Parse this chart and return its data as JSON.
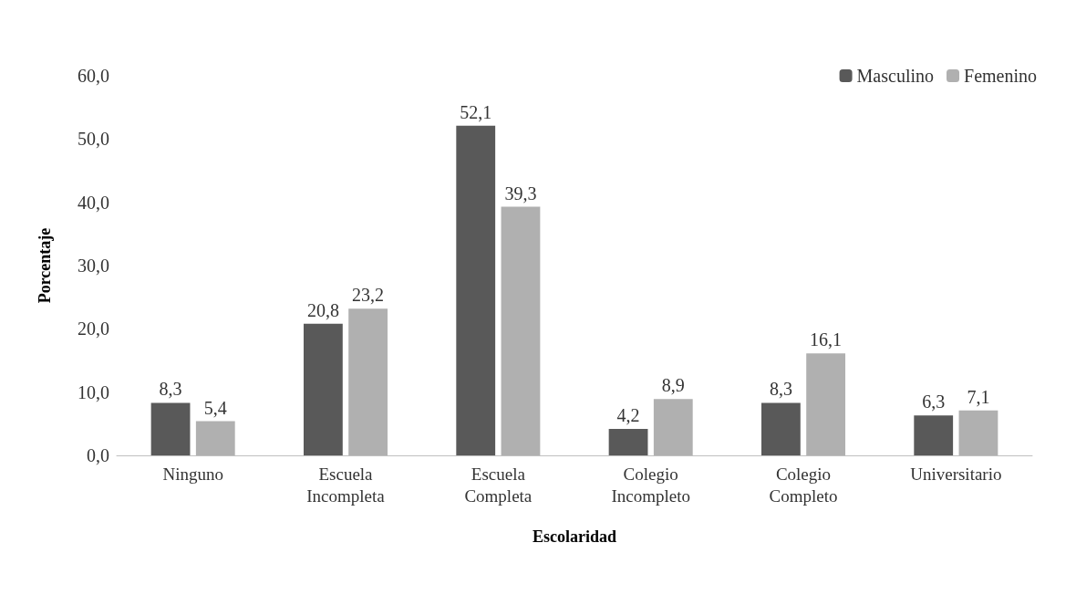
{
  "chart_data": {
    "type": "bar",
    "xlabel": "Escolaridad",
    "ylabel": "Porcentaje",
    "categories": [
      "Ninguno",
      "Escuela Incompleta",
      "Escuela Completa",
      "Colegio Incompleto",
      "Colegio Completo",
      "Universitario"
    ],
    "series": [
      {
        "name": "Masculino",
        "color": "#595959",
        "values": [
          8.3,
          20.8,
          52.1,
          4.2,
          8.3,
          6.3
        ],
        "value_labels": [
          "8,3",
          "20,8",
          "52,1",
          "4,2",
          "8,3",
          "6,3"
        ]
      },
      {
        "name": "Femenino",
        "color": "#b0b0b0",
        "values": [
          5.4,
          23.2,
          39.3,
          8.9,
          16.1,
          7.1
        ],
        "value_labels": [
          "5,4",
          "23,2",
          "39,3",
          "8,9",
          "16,1",
          "7,1"
        ]
      }
    ],
    "ylim": [
      0,
      60
    ],
    "yticks": [
      {
        "value": 0,
        "label": "0,0"
      },
      {
        "value": 10,
        "label": "10,0"
      },
      {
        "value": 20,
        "label": "20,0"
      },
      {
        "value": 30,
        "label": "30,0"
      },
      {
        "value": 40,
        "label": "40,0"
      },
      {
        "value": 50,
        "label": "50,0"
      },
      {
        "value": 60,
        "label": "60,0"
      }
    ],
    "grid": false,
    "legend": "top right"
  }
}
